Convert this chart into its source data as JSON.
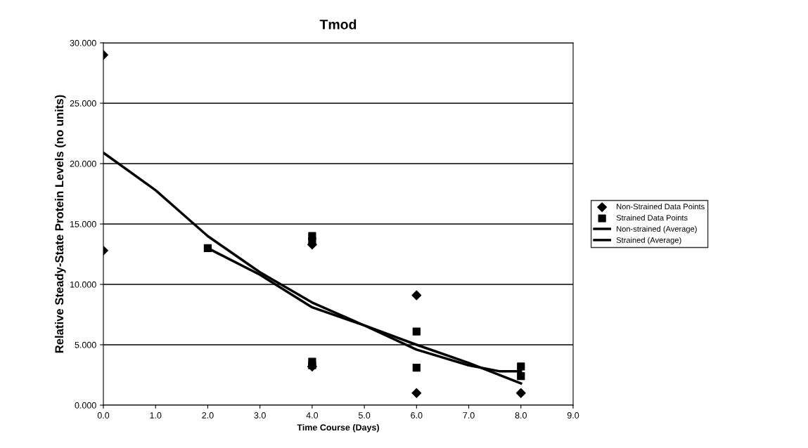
{
  "chart_data": {
    "type": "scatter",
    "title": "Tmod",
    "xlabel": "Time Course (Days)",
    "ylabel": "Relative Steady-State Protein Levels (no units)",
    "xlim": [
      0,
      9
    ],
    "xticks": [
      {
        "value": 0,
        "label": "0.0"
      },
      {
        "value": 1,
        "label": "1.0"
      },
      {
        "value": 2,
        "label": "2.0"
      },
      {
        "value": 3,
        "label": "3.0"
      },
      {
        "value": 4,
        "label": "4.0"
      },
      {
        "value": 5,
        "label": "5.0"
      },
      {
        "value": 6,
        "label": "6.0"
      },
      {
        "value": 7,
        "label": "7.0"
      },
      {
        "value": 8,
        "label": "8.0"
      },
      {
        "value": 9,
        "label": "9.0"
      }
    ],
    "ylim": [
      0,
      30
    ],
    "yticks": [
      {
        "value": 0,
        "label": "0.000"
      },
      {
        "value": 5,
        "label": "5.000"
      },
      {
        "value": 10,
        "label": "10.000"
      },
      {
        "value": 15,
        "label": "15.000"
      },
      {
        "value": 20,
        "label": "20.000"
      },
      {
        "value": 25,
        "label": "25.000"
      },
      {
        "value": 30,
        "label": "30.000"
      }
    ],
    "grid": "y",
    "legend": "right",
    "series": [
      {
        "name": "Non-Strained Data Points",
        "marker": "diamond",
        "color": "#000000",
        "x": [
          0,
          0,
          4,
          4,
          6,
          6,
          8
        ],
        "values": [
          29.0,
          12.8,
          13.3,
          3.2,
          9.1,
          1.0,
          1.0
        ]
      },
      {
        "name": "Strained Data Points",
        "marker": "square",
        "color": "#000000",
        "x": [
          2,
          4,
          4,
          4,
          4,
          6,
          6,
          8,
          8
        ],
        "values": [
          13.0,
          14.0,
          13.6,
          3.6,
          3.3,
          6.1,
          3.1,
          3.2,
          2.4
        ]
      },
      {
        "name": "Non-strained (Average)",
        "type": "line",
        "marker": "none",
        "color": "#000000",
        "x": [
          0,
          1,
          2,
          3,
          4,
          5,
          6,
          7,
          8
        ],
        "values": [
          20.9,
          17.8,
          14.0,
          11.0,
          8.5,
          6.6,
          5.0,
          3.5,
          1.8
        ]
      },
      {
        "name": "Strained (Average)",
        "type": "line",
        "marker": "none",
        "color": "#000000",
        "x": [
          2,
          3,
          4,
          5,
          6,
          7,
          7.6,
          8
        ],
        "values": [
          13.0,
          10.8,
          8.1,
          6.6,
          4.6,
          3.3,
          2.8,
          2.8
        ]
      }
    ]
  }
}
